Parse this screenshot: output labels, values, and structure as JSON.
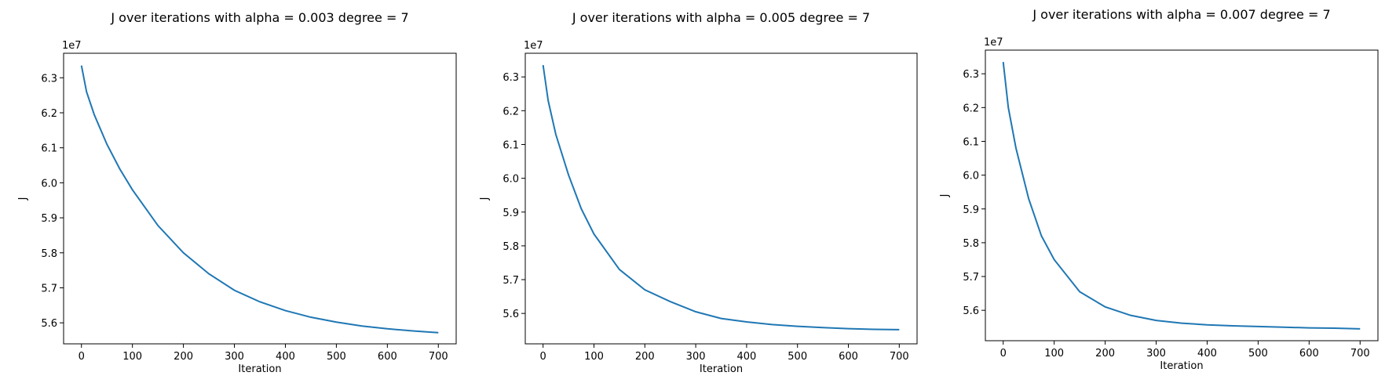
{
  "chart_data": [
    {
      "type": "line",
      "title": "J over iterations with alpha = 0.003 degree = 7",
      "xlabel": "Iteration",
      "ylabel": "J",
      "offset_label": "1e7",
      "xlim": [
        -35,
        735
      ],
      "ylim": [
        55.4,
        63.7
      ],
      "xticks": [
        0,
        100,
        200,
        300,
        400,
        500,
        600,
        700
      ],
      "yticks": [
        5.6,
        5.7,
        5.8,
        5.9,
        6.0,
        6.1,
        6.2,
        6.3
      ],
      "grid": false,
      "color": "#1f77b4",
      "series": [
        {
          "x": [
            0,
            10,
            25,
            50,
            75,
            100,
            150,
            200,
            250,
            300,
            350,
            400,
            450,
            500,
            550,
            600,
            650,
            700
          ],
          "y": [
            63.35,
            62.6,
            61.95,
            61.1,
            60.4,
            59.8,
            58.78,
            58.0,
            57.4,
            56.93,
            56.6,
            56.35,
            56.16,
            56.02,
            55.91,
            55.83,
            55.77,
            55.72
          ]
        }
      ]
    },
    {
      "type": "line",
      "title": "J over iterations with alpha = 0.005 degree = 7",
      "xlabel": "Iteration",
      "ylabel": "J",
      "offset_label": "1e7",
      "xlim": [
        -35,
        735
      ],
      "ylim": [
        55.1,
        63.7
      ],
      "xticks": [
        0,
        100,
        200,
        300,
        400,
        500,
        600,
        700
      ],
      "yticks": [
        5.6,
        5.7,
        5.8,
        5.9,
        6.0,
        6.1,
        6.2,
        6.3
      ],
      "grid": false,
      "color": "#1f77b4",
      "series": [
        {
          "x": [
            0,
            10,
            25,
            50,
            75,
            100,
            150,
            200,
            250,
            300,
            350,
            400,
            450,
            500,
            550,
            600,
            650,
            700
          ],
          "y": [
            63.35,
            62.3,
            61.3,
            60.1,
            59.1,
            58.35,
            57.3,
            56.7,
            56.35,
            56.05,
            55.85,
            55.75,
            55.67,
            55.62,
            55.58,
            55.55,
            55.53,
            55.52
          ]
        }
      ]
    },
    {
      "type": "line",
      "title": "J over iterations with alpha = 0.007 degree = 7",
      "xlabel": "Iteration",
      "ylabel": "J",
      "offset_label": "1e7",
      "xlim": [
        -35,
        735
      ],
      "ylim": [
        55.1,
        63.7
      ],
      "xticks": [
        0,
        100,
        200,
        300,
        400,
        500,
        600,
        700
      ],
      "yticks": [
        5.6,
        5.7,
        5.8,
        5.9,
        6.0,
        6.1,
        6.2,
        6.3
      ],
      "grid": false,
      "color": "#1f77b4",
      "series": [
        {
          "x": [
            0,
            10,
            25,
            50,
            75,
            100,
            150,
            200,
            250,
            300,
            350,
            400,
            450,
            500,
            550,
            600,
            650,
            700
          ],
          "y": [
            63.35,
            62.0,
            60.8,
            59.3,
            58.2,
            57.5,
            56.55,
            56.1,
            55.85,
            55.7,
            55.62,
            55.57,
            55.54,
            55.52,
            55.5,
            55.48,
            55.47,
            55.45
          ]
        }
      ]
    }
  ]
}
